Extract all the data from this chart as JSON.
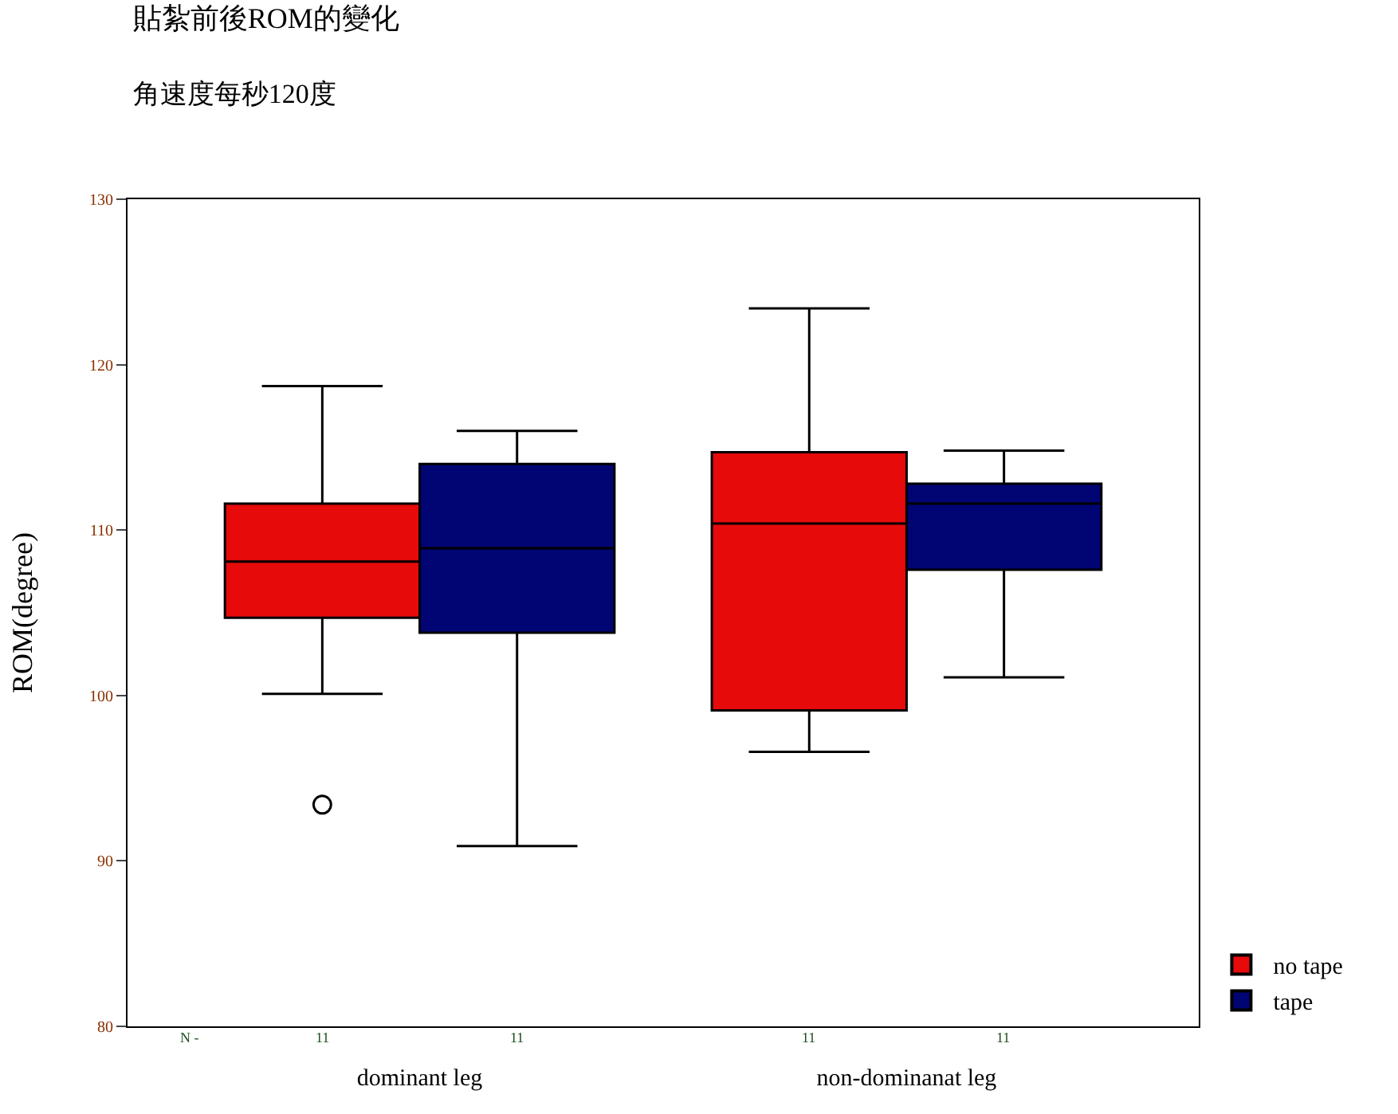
{
  "chart_data": {
    "type": "box",
    "title": "貼紮前後ROM的變化",
    "subtitle": "角速度每秒120度",
    "ylabel": "ROM(degree)",
    "categories": [
      "dominant leg",
      "non-dominanat leg"
    ],
    "series": [
      {
        "name": "no tape",
        "color": "#e60a0a",
        "boxes": [
          {
            "low": 100.1,
            "q1": 104.7,
            "median": 108.1,
            "q3": 111.6,
            "high": 118.7,
            "outliers": [
              93.4
            ]
          },
          {
            "low": 96.6,
            "q1": 99.1,
            "median": 110.4,
            "q3": 114.7,
            "high": 123.4
          }
        ]
      },
      {
        "name": "tape",
        "color": "#000573",
        "boxes": [
          {
            "low": 90.9,
            "q1": 103.8,
            "median": 108.9,
            "q3": 114.0,
            "high": 116.0
          },
          {
            "low": 101.1,
            "q1": 107.6,
            "median": 111.6,
            "q3": 112.8,
            "high": 114.8
          }
        ]
      }
    ],
    "annotations": [
      "N -",
      "11",
      "11",
      "11",
      "11"
    ],
    "ylim": [
      80,
      130
    ],
    "yticks": [
      80,
      90,
      100,
      110,
      120,
      130
    ],
    "legend": "bottom right"
  }
}
